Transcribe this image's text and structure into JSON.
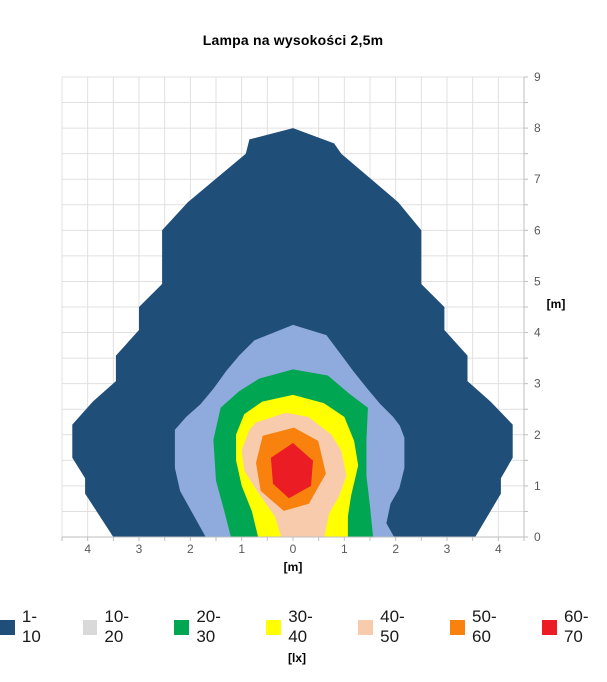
{
  "title": "Lampa na wysokości 2,5m",
  "chart_data": {
    "type": "filled-contour",
    "title": "Lampa na wysokości 2,5m",
    "description": "Illuminance map on ground plane for a lamp mounted at 2.5 m height",
    "xlabel": "[m]",
    "ylabel": "[m]",
    "legend_unit": "[lx]",
    "xlim": [
      -4.5,
      4.5
    ],
    "ylim": [
      0,
      9
    ],
    "grid": true,
    "grid_step": 0.5,
    "legend_position": "bottom",
    "x_tick_values": [
      -4,
      -3,
      -2,
      -1,
      0,
      1,
      2,
      3,
      4
    ],
    "x_tick_labels": [
      "4",
      "3",
      "2",
      "1",
      "0",
      "1",
      "2",
      "3",
      "4"
    ],
    "y_tick_values": [
      0,
      1,
      2,
      3,
      4,
      5,
      6,
      7,
      8,
      9
    ],
    "y_tick_labels": [
      "0",
      "1",
      "2",
      "3",
      "4",
      "5",
      "6",
      "7",
      "8",
      "9"
    ],
    "grid_color": "#e0e0e0",
    "axis_color": "#bfbfbf",
    "tick_label_color": "#595959",
    "bands": [
      {
        "range": "1-10",
        "min_lx": 1,
        "max_lx": 10,
        "fill": "#1F4E79",
        "legend_swatch": "#1F4E79",
        "polygon": [
          [
            -3.5,
            0
          ],
          [
            -4.05,
            0.85
          ],
          [
            -4.05,
            1.15
          ],
          [
            -4.3,
            1.55
          ],
          [
            -4.3,
            2.2
          ],
          [
            -3.9,
            2.65
          ],
          [
            -3.45,
            3.05
          ],
          [
            -3.45,
            3.55
          ],
          [
            -3.0,
            4.05
          ],
          [
            -3.0,
            4.5
          ],
          [
            -2.55,
            4.95
          ],
          [
            -2.55,
            6.0
          ],
          [
            -2.05,
            6.55
          ],
          [
            -0.92,
            7.5
          ],
          [
            -0.85,
            7.78
          ],
          [
            0,
            8.0
          ],
          [
            0.8,
            7.7
          ],
          [
            0.94,
            7.5
          ],
          [
            2.05,
            6.55
          ],
          [
            2.5,
            6.0
          ],
          [
            2.5,
            4.95
          ],
          [
            2.95,
            4.5
          ],
          [
            2.95,
            4.05
          ],
          [
            3.4,
            3.55
          ],
          [
            3.4,
            3.05
          ],
          [
            3.85,
            2.65
          ],
          [
            4.28,
            2.2
          ],
          [
            4.28,
            1.55
          ],
          [
            4.05,
            1.15
          ],
          [
            4.05,
            0.85
          ],
          [
            3.55,
            0
          ]
        ]
      },
      {
        "range": "10-20",
        "min_lx": 10,
        "max_lx": 20,
        "fill": "#8FAADC",
        "legend_swatch": "#D9D9D9",
        "polygon": [
          [
            -1.7,
            0
          ],
          [
            -1.95,
            0.45
          ],
          [
            -2.2,
            0.9
          ],
          [
            -2.3,
            1.35
          ],
          [
            -2.3,
            2.1
          ],
          [
            -2.08,
            2.35
          ],
          [
            -1.8,
            2.6
          ],
          [
            -1.55,
            2.9
          ],
          [
            -1.3,
            3.25
          ],
          [
            -1.05,
            3.55
          ],
          [
            -0.75,
            3.85
          ],
          [
            0,
            4.15
          ],
          [
            0.65,
            3.95
          ],
          [
            0.95,
            3.55
          ],
          [
            1.17,
            3.25
          ],
          [
            1.45,
            2.9
          ],
          [
            1.7,
            2.6
          ],
          [
            1.95,
            2.35
          ],
          [
            2.08,
            2.18
          ],
          [
            2.17,
            1.94
          ],
          [
            2.17,
            1.35
          ],
          [
            2.07,
            0.95
          ],
          [
            1.9,
            0.65
          ],
          [
            1.82,
            0.27
          ],
          [
            1.97,
            0
          ]
        ]
      },
      {
        "range": "20-30",
        "min_lx": 20,
        "max_lx": 30,
        "fill": "#00A651",
        "legend_swatch": "#00A651",
        "polygon": [
          [
            -1.21,
            0
          ],
          [
            -1.35,
            0.55
          ],
          [
            -1.5,
            1.1
          ],
          [
            -1.55,
            1.9
          ],
          [
            -1.41,
            2.53
          ],
          [
            -1.05,
            2.85
          ],
          [
            -0.66,
            3.1
          ],
          [
            0,
            3.28
          ],
          [
            0.68,
            3.16
          ],
          [
            1.1,
            2.8
          ],
          [
            1.46,
            2.53
          ],
          [
            1.43,
            1.88
          ],
          [
            1.43,
            1.2
          ],
          [
            1.5,
            0.6
          ],
          [
            1.56,
            0
          ]
        ]
      },
      {
        "range": "30-40",
        "min_lx": 30,
        "max_lx": 40,
        "fill": "#FFFF00",
        "legend_swatch": "#FFFF00",
        "polygon": [
          [
            -0.68,
            0
          ],
          [
            -0.8,
            0.5
          ],
          [
            -1.0,
            1.0
          ],
          [
            -1.11,
            1.5
          ],
          [
            -1.11,
            2.0
          ],
          [
            -0.95,
            2.4
          ],
          [
            -0.6,
            2.65
          ],
          [
            0,
            2.78
          ],
          [
            0.6,
            2.62
          ],
          [
            1.0,
            2.35
          ],
          [
            1.19,
            1.88
          ],
          [
            1.27,
            1.4
          ],
          [
            1.13,
            0.8
          ],
          [
            1.07,
            0.4
          ],
          [
            1.07,
            0
          ]
        ]
      },
      {
        "range": "40-50",
        "min_lx": 40,
        "max_lx": 50,
        "fill": "#F8CBAD",
        "legend_swatch": "#F8CBAD",
        "polygon": [
          [
            -0.23,
            0
          ],
          [
            -0.35,
            0.4
          ],
          [
            -0.7,
            0.9
          ],
          [
            -0.95,
            1.3
          ],
          [
            -1.0,
            1.7
          ],
          [
            -0.85,
            2.1
          ],
          [
            -0.72,
            2.24
          ],
          [
            -0.14,
            2.43
          ],
          [
            0.3,
            2.35
          ],
          [
            0.75,
            2.0
          ],
          [
            0.94,
            1.69
          ],
          [
            1.04,
            1.2
          ],
          [
            0.9,
            0.8
          ],
          [
            0.7,
            0.45
          ],
          [
            0.61,
            0
          ]
        ]
      },
      {
        "range": "50-60",
        "min_lx": 50,
        "max_lx": 60,
        "fill": "#F8820D",
        "legend_swatch": "#F8820D",
        "polygon": [
          [
            0.02,
            2.14
          ],
          [
            -0.59,
            1.98
          ],
          [
            -0.72,
            1.45
          ],
          [
            -0.63,
            0.9
          ],
          [
            -0.18,
            0.51
          ],
          [
            0.31,
            0.65
          ],
          [
            0.64,
            1.24
          ],
          [
            0.49,
            1.88
          ]
        ]
      },
      {
        "range": "60-70",
        "min_lx": 60,
        "max_lx": 70,
        "fill": "#EC1C24",
        "legend_swatch": "#EC1C24",
        "polygon": [
          [
            0,
            1.84
          ],
          [
            -0.43,
            1.55
          ],
          [
            -0.39,
            1.04
          ],
          [
            -0.08,
            0.76
          ],
          [
            0.35,
            1.0
          ],
          [
            0.39,
            1.49
          ]
        ]
      }
    ]
  }
}
